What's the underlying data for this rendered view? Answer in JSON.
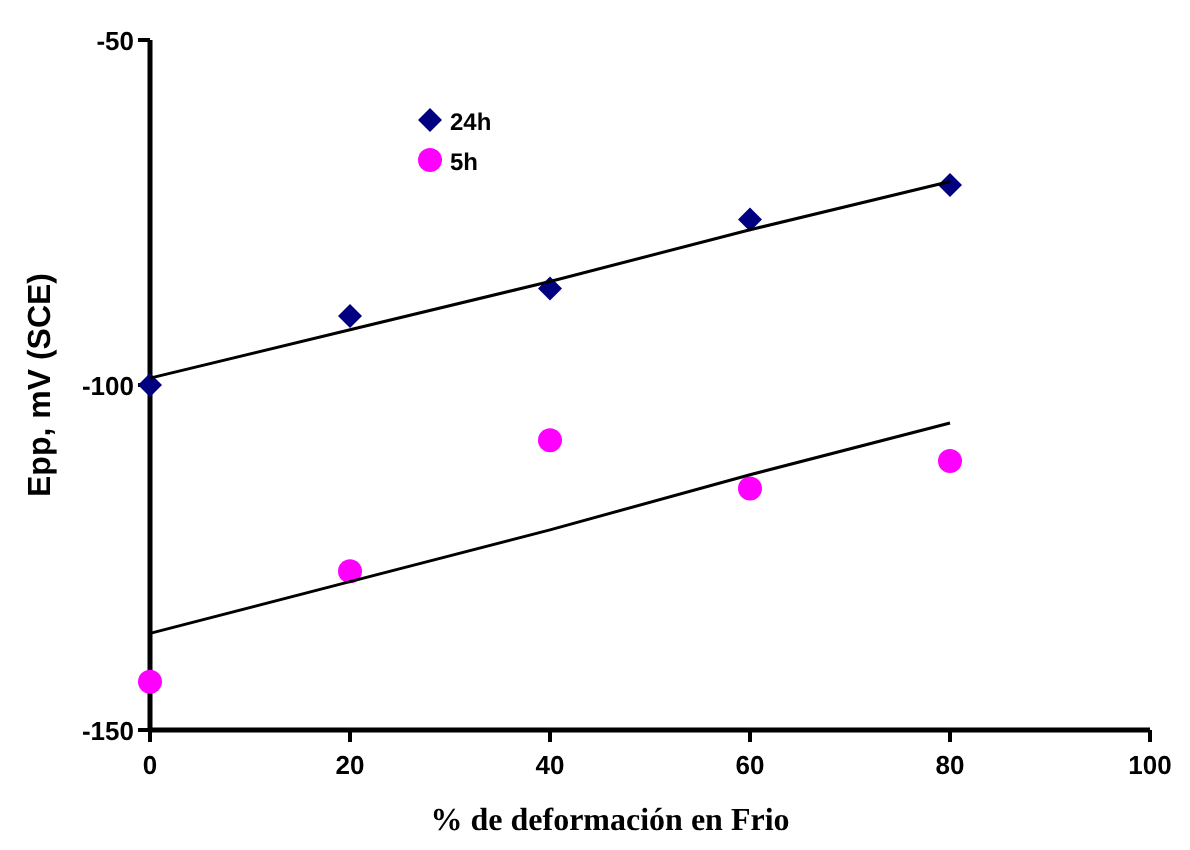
{
  "chart_data": {
    "type": "scatter",
    "xlabel": "% de deformación en Frio",
    "ylabel": "Epp,  mV (SCE)",
    "x": [
      0,
      20,
      40,
      60,
      80
    ],
    "xlim": [
      0,
      100
    ],
    "xticks": [
      0,
      20,
      40,
      60,
      80,
      100
    ],
    "ylim": [
      -150,
      -50
    ],
    "yticks": [
      -150,
      -100,
      -50
    ],
    "grid": false,
    "legend": "top",
    "series": [
      {
        "name": "24h",
        "color": "#000080",
        "marker": "diamond",
        "values": [
          -100,
          -90,
          -86,
          -76,
          -71
        ]
      },
      {
        "name": "5h",
        "color": "#ff00ff",
        "marker": "circle",
        "values": [
          -143,
          -127,
          -108,
          -115,
          -111
        ]
      },
      {
        "type": "line",
        "color": "#000000",
        "marker": "none",
        "values": [
          -99,
          -92,
          -85,
          -77.5,
          -70.5
        ]
      },
      {
        "type": "line",
        "color": "#000000",
        "marker": "none",
        "values": [
          -136,
          -128.5,
          -121,
          -113,
          -105.5
        ]
      }
    ]
  }
}
